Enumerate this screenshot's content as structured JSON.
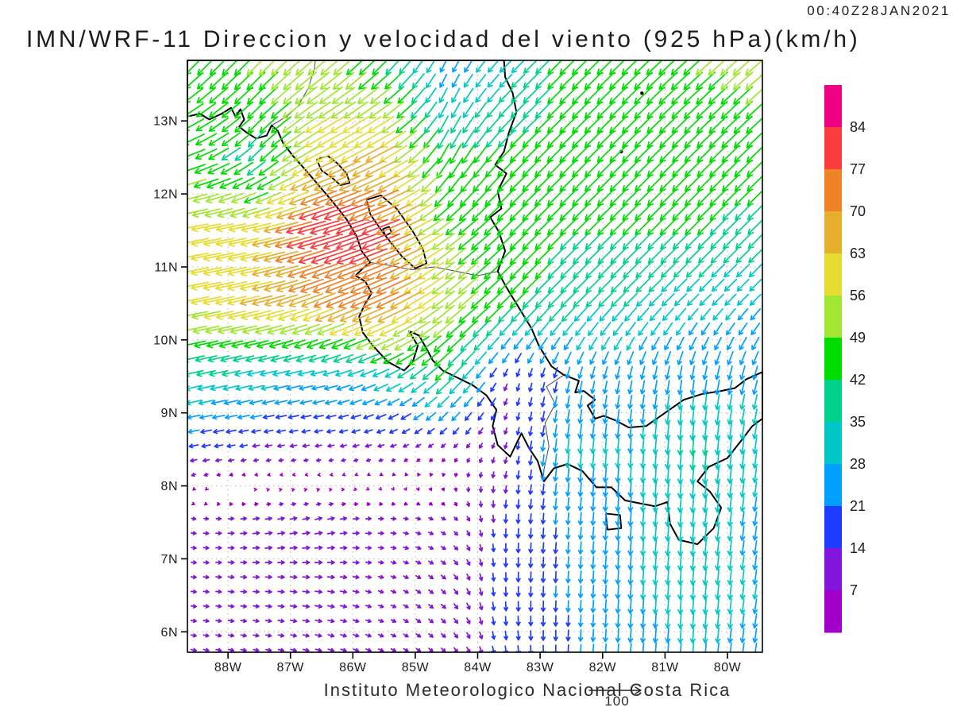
{
  "header": {
    "title": "IMN/WRF-11 Direccion y velocidad del viento (925 hPa)(km/h)",
    "timestamp": "00:40Z28JAN2021"
  },
  "footer": {
    "credit": "Instituto Meteorologico Nacional Costa Rica"
  },
  "reference_vector": {
    "label": "100",
    "value": 100,
    "units": "km/h"
  },
  "chart_data": {
    "type": "vector_field_map",
    "model": "IMN/WRF-11",
    "variable": "Direccion y velocidad del viento",
    "level": "925 hPa",
    "units": "km/h",
    "valid_time": "00:40Z28JAN2021",
    "axes": {
      "lon_range": [
        -88.65,
        -79.44
      ],
      "lat_range": [
        5.72,
        13.83
      ],
      "lon_tick_values": [
        -88,
        -87,
        -86,
        -85,
        -84,
        -83,
        -82,
        -81,
        -80
      ],
      "lon_tick_labels": [
        "88W",
        "87W",
        "86W",
        "85W",
        "84W",
        "83W",
        "82W",
        "81W",
        "80W"
      ],
      "lat_tick_values": [
        13,
        12,
        11,
        10,
        9,
        8,
        7,
        6
      ],
      "lat_tick_labels": [
        "13N",
        "12N",
        "11N",
        "10N",
        "9N",
        "8N",
        "7N",
        "6N"
      ],
      "grid": "dotted"
    },
    "colorbar": {
      "units": "km/h",
      "levels": [
        7,
        14,
        21,
        28,
        35,
        42,
        49,
        56,
        63,
        70,
        77,
        84
      ],
      "labels": [
        "84",
        "77",
        "70",
        "63",
        "56",
        "49",
        "42",
        "35",
        "28",
        "21",
        "14",
        "7"
      ],
      "colors_bottom_to_top": [
        "#a000c8",
        "#8214dc",
        "#1e3cff",
        "#00a0ff",
        "#00c8c8",
        "#00d28c",
        "#00dc00",
        "#a0e632",
        "#e6dc32",
        "#e6af2d",
        "#f08228",
        "#fa3c3c",
        "#f00082"
      ]
    },
    "wind_grid": {
      "units": "km/h",
      "lons": [
        -88.5,
        -87.5,
        -86.5,
        -85.5,
        -84.5,
        -83.5,
        -82.5,
        -81.5,
        -80.5,
        -79.5
      ],
      "lats": [
        13.7,
        12.5,
        11.5,
        10.5,
        9.5,
        8.5,
        7.5,
        6.5,
        5.7
      ],
      "u": [
        [
          -32,
          -35,
          -40,
          -32,
          -10,
          -23,
          -32,
          -33,
          -36,
          -38
        ],
        [
          -43,
          -28,
          -55,
          -58,
          -20,
          -31,
          -32,
          -31,
          -31,
          -33
        ],
        [
          -56,
          -58,
          -82,
          -72,
          -40,
          -32,
          -30,
          -30,
          -30,
          -28
        ],
        [
          -57,
          -62,
          -64,
          -68,
          -42,
          -31,
          -27,
          -25,
          -21,
          -20
        ],
        [
          -35,
          -31,
          -27,
          -29,
          -30,
          -4,
          -5,
          -5,
          -4,
          -7
        ],
        [
          -16,
          -12,
          -11,
          -10,
          -6,
          -3,
          -3,
          -2,
          -3,
          -4
        ],
        [
          9,
          13,
          14,
          10,
          8,
          -1,
          -2,
          -2,
          -3,
          -4
        ],
        [
          10,
          11,
          13,
          9,
          8,
          0,
          -1,
          -2,
          -2,
          -4
        ],
        [
          10,
          10,
          11,
          9,
          7,
          2,
          -1,
          -2,
          -2,
          -4
        ]
      ],
      "v": [
        [
          -32,
          -35,
          -33,
          -32,
          -22,
          -23,
          -32,
          -32,
          -33,
          -34
        ],
        [
          -16,
          -28,
          -28,
          -30,
          -39,
          -31,
          -32,
          -31,
          -31,
          -32
        ],
        [
          -10,
          -12,
          -24,
          -28,
          -30,
          -32,
          -30,
          -30,
          -30,
          -28
        ],
        [
          -11,
          -15,
          -26,
          -30,
          -34,
          -31,
          -27,
          -25,
          -21,
          -20
        ],
        [
          -8,
          -7,
          -6,
          -13,
          -30,
          -12,
          -21,
          -24,
          -26,
          -26
        ],
        [
          -3,
          -2,
          -2,
          -3,
          -5,
          -11,
          -30,
          -28,
          -38,
          -30
        ],
        [
          -1,
          2,
          3,
          0,
          -4,
          -17,
          -22,
          -28,
          -30,
          -26
        ],
        [
          -1,
          -1,
          -2,
          -3,
          -8,
          -18,
          -22,
          -28,
          -30,
          -28
        ],
        [
          -2,
          -2,
          -3,
          -4,
          -7,
          -16,
          -20,
          -26,
          -28,
          -26
        ]
      ]
    },
    "map": {
      "coast_color": "#000000",
      "border_color": "#4a4a4a",
      "grid_color": "#b8b8b8",
      "mainland": [
        [
          -88.65,
          13.83
        ],
        [
          -88.65,
          13.06
        ],
        [
          -88.45,
          13.1
        ],
        [
          -88.3,
          13.02
        ],
        [
          -88.1,
          13.1
        ],
        [
          -87.95,
          13.18
        ],
        [
          -87.88,
          13.06
        ],
        [
          -87.8,
          13.16
        ],
        [
          -87.74,
          13.02
        ],
        [
          -87.82,
          12.92
        ],
        [
          -87.7,
          12.84
        ],
        [
          -87.55,
          12.76
        ],
        [
          -87.38,
          12.8
        ],
        [
          -87.3,
          12.94
        ],
        [
          -87.2,
          12.86
        ],
        [
          -87.12,
          12.7
        ],
        [
          -86.96,
          12.52
        ],
        [
          -86.75,
          12.32
        ],
        [
          -86.55,
          12.12
        ],
        [
          -86.33,
          11.9
        ],
        [
          -86.1,
          11.65
        ],
        [
          -85.94,
          11.42
        ],
        [
          -85.86,
          11.22
        ],
        [
          -85.72,
          11.06
        ],
        [
          -85.84,
          10.98
        ],
        [
          -85.96,
          10.88
        ],
        [
          -85.8,
          10.8
        ],
        [
          -85.7,
          10.64
        ],
        [
          -85.8,
          10.5
        ],
        [
          -85.9,
          10.32
        ],
        [
          -85.84,
          10.1
        ],
        [
          -85.68,
          9.92
        ],
        [
          -85.44,
          9.7
        ],
        [
          -85.18,
          9.58
        ],
        [
          -85.04,
          9.7
        ],
        [
          -84.96,
          9.92
        ],
        [
          -85.1,
          10.12
        ],
        [
          -84.94,
          10.06
        ],
        [
          -84.82,
          9.88
        ],
        [
          -84.72,
          9.72
        ],
        [
          -84.56,
          9.58
        ],
        [
          -84.32,
          9.48
        ],
        [
          -84.08,
          9.38
        ],
        [
          -83.86,
          9.24
        ],
        [
          -83.7,
          9.04
        ],
        [
          -83.76,
          8.82
        ],
        [
          -83.68,
          8.56
        ],
        [
          -83.48,
          8.4
        ],
        [
          -83.38,
          8.58
        ],
        [
          -83.3,
          8.72
        ],
        [
          -83.18,
          8.52
        ],
        [
          -83.04,
          8.34
        ],
        [
          -82.94,
          8.06
        ],
        [
          -82.78,
          8.24
        ],
        [
          -82.56,
          8.3
        ],
        [
          -82.32,
          8.2
        ],
        [
          -82.1,
          7.98
        ],
        [
          -81.86,
          7.98
        ],
        [
          -81.64,
          7.8
        ],
        [
          -81.4,
          7.76
        ],
        [
          -81.16,
          7.72
        ],
        [
          -80.96,
          7.78
        ],
        [
          -80.92,
          7.48
        ],
        [
          -80.78,
          7.26
        ],
        [
          -80.48,
          7.2
        ],
        [
          -80.22,
          7.42
        ],
        [
          -80.1,
          7.7
        ],
        [
          -80.28,
          7.92
        ],
        [
          -80.48,
          8.06
        ],
        [
          -80.3,
          8.26
        ],
        [
          -80.0,
          8.38
        ],
        [
          -79.78,
          8.62
        ],
        [
          -79.6,
          8.82
        ],
        [
          -79.44,
          8.92
        ],
        [
          -79.44,
          9.56
        ],
        [
          -79.7,
          9.46
        ],
        [
          -79.88,
          9.34
        ],
        [
          -80.1,
          9.3
        ],
        [
          -80.4,
          9.26
        ],
        [
          -80.7,
          9.18
        ],
        [
          -81.0,
          9.0
        ],
        [
          -81.3,
          8.82
        ],
        [
          -81.58,
          8.8
        ],
        [
          -81.8,
          8.9
        ],
        [
          -81.98,
          8.96
        ],
        [
          -82.12,
          8.92
        ],
        [
          -82.24,
          9.1
        ],
        [
          -82.12,
          9.18
        ],
        [
          -82.3,
          9.3
        ],
        [
          -82.44,
          9.28
        ],
        [
          -82.38,
          9.44
        ],
        [
          -82.62,
          9.52
        ],
        [
          -82.82,
          9.64
        ],
        [
          -83.02,
          9.92
        ],
        [
          -83.14,
          10.16
        ],
        [
          -83.34,
          10.44
        ],
        [
          -83.54,
          10.72
        ],
        [
          -83.68,
          10.94
        ],
        [
          -83.56,
          11.22
        ],
        [
          -83.66,
          11.48
        ],
        [
          -83.8,
          11.68
        ],
        [
          -83.62,
          11.8
        ],
        [
          -83.68,
          12.04
        ],
        [
          -83.54,
          12.28
        ],
        [
          -83.72,
          12.4
        ],
        [
          -83.58,
          12.58
        ],
        [
          -83.5,
          12.84
        ],
        [
          -83.38,
          13.12
        ],
        [
          -83.44,
          13.38
        ],
        [
          -83.56,
          13.6
        ],
        [
          -83.58,
          13.83
        ]
      ],
      "lake_managua": [
        [
          -86.58,
          12.47
        ],
        [
          -86.4,
          12.52
        ],
        [
          -86.25,
          12.42
        ],
        [
          -86.1,
          12.28
        ],
        [
          -86.05,
          12.15
        ],
        [
          -86.2,
          12.12
        ],
        [
          -86.33,
          12.22
        ],
        [
          -86.5,
          12.32
        ],
        [
          -86.58,
          12.47
        ]
      ],
      "lake_nicaragua": [
        [
          -85.78,
          11.92
        ],
        [
          -85.55,
          11.98
        ],
        [
          -85.3,
          11.8
        ],
        [
          -85.05,
          11.5
        ],
        [
          -84.88,
          11.25
        ],
        [
          -84.82,
          11.05
        ],
        [
          -85.0,
          10.98
        ],
        [
          -85.22,
          11.15
        ],
        [
          -85.5,
          11.45
        ],
        [
          -85.72,
          11.72
        ],
        [
          -85.78,
          11.92
        ]
      ],
      "ometepe_island": [
        [
          -85.52,
          11.52
        ],
        [
          -85.42,
          11.55
        ],
        [
          -85.38,
          11.47
        ],
        [
          -85.48,
          11.43
        ],
        [
          -85.52,
          11.52
        ]
      ],
      "coiba_island": [
        [
          -81.95,
          7.62
        ],
        [
          -81.72,
          7.6
        ],
        [
          -81.7,
          7.42
        ],
        [
          -81.92,
          7.4
        ],
        [
          -81.95,
          7.62
        ]
      ],
      "small_islands": [
        [
          -81.37,
          13.38
        ],
        [
          -81.7,
          12.58
        ]
      ],
      "border_hn_ni": [
        [
          -87.3,
          12.94
        ],
        [
          -87.06,
          13.06
        ],
        [
          -86.88,
          13.2
        ],
        [
          -86.72,
          13.44
        ],
        [
          -86.62,
          13.7
        ],
        [
          -86.6,
          13.83
        ]
      ],
      "border_ni_cr": [
        [
          -85.72,
          11.06
        ],
        [
          -85.4,
          11.02
        ],
        [
          -85.06,
          10.96
        ],
        [
          -84.7,
          11.0
        ],
        [
          -84.34,
          10.94
        ],
        [
          -84.0,
          10.88
        ],
        [
          -83.68,
          10.94
        ]
      ],
      "border_cr_pa": [
        [
          -82.94,
          8.22
        ],
        [
          -82.86,
          8.54
        ],
        [
          -82.92,
          8.86
        ],
        [
          -82.76,
          9.12
        ],
        [
          -82.9,
          9.36
        ],
        [
          -82.62,
          9.52
        ]
      ]
    }
  }
}
